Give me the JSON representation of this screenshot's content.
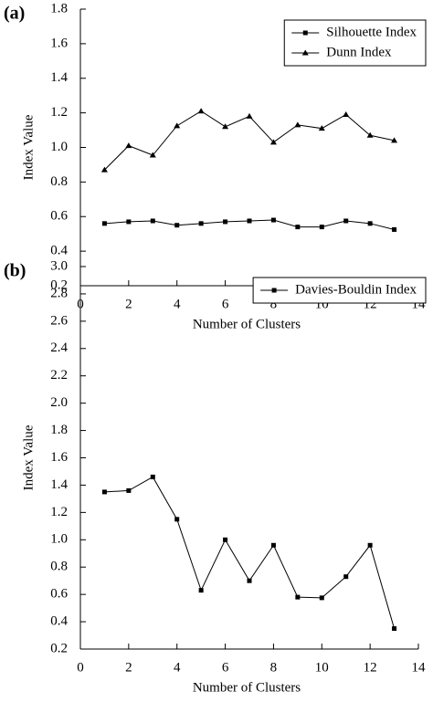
{
  "chart_data": [
    {
      "type": "line",
      "panel_label": "(a)",
      "xlabel": "Number of Clusters",
      "ylabel": "Index Value",
      "x": [
        1,
        2,
        3,
        4,
        5,
        6,
        7,
        8,
        9,
        10,
        11,
        12,
        13
      ],
      "series": [
        {
          "name": "Silhouette Index",
          "color": "#000000",
          "marker": "square",
          "values": [
            0.56,
            0.57,
            0.575,
            0.55,
            0.56,
            0.57,
            0.575,
            0.58,
            0.54,
            0.54,
            0.575,
            0.56,
            0.525
          ]
        },
        {
          "name": "Dunn Index",
          "color": "#000000",
          "marker": "triangle",
          "values": [
            0.87,
            1.01,
            0.955,
            1.125,
            1.21,
            1.12,
            1.18,
            1.03,
            1.13,
            1.11,
            1.19,
            1.07,
            1.04
          ]
        }
      ],
      "xlim": [
        0,
        14
      ],
      "xticks": [
        0,
        2,
        4,
        6,
        8,
        10,
        12,
        14
      ],
      "ylim": [
        0.2,
        1.8
      ],
      "yticks": [
        0.2,
        0.4,
        0.6,
        0.8,
        {
          "value": 1,
          "label": "1.0"
        },
        1.2,
        1.4,
        1.6,
        1.8
      ],
      "legend": "upper right"
    },
    {
      "type": "line",
      "panel_label": "(b)",
      "xlabel": "Number of Clusters",
      "ylabel": "Index Value",
      "x": [
        1,
        2,
        3,
        4,
        5,
        6,
        7,
        8,
        9,
        10,
        11,
        12,
        13
      ],
      "series": [
        {
          "name": "Davies-Bouldin Index",
          "color": "#000000",
          "marker": "square",
          "values": [
            1.35,
            1.36,
            1.46,
            1.15,
            0.63,
            1.0,
            0.7,
            0.96,
            0.58,
            0.575,
            0.73,
            0.96,
            0.35
          ]
        }
      ],
      "xlim": [
        0,
        14
      ],
      "xticks": [
        0,
        2,
        4,
        6,
        8,
        10,
        12,
        14
      ],
      "ylim": [
        0.2,
        3.0
      ],
      "yticks": [
        0.2,
        0.4,
        0.6,
        0.8,
        {
          "value": 1,
          "label": "1.0"
        },
        1.2,
        1.4,
        1.6,
        1.8,
        {
          "value": 2,
          "label": "2.0"
        },
        2.2,
        2.4,
        2.6,
        2.8,
        {
          "value": 3,
          "label": "3.0"
        }
      ],
      "legend": "upper right"
    }
  ]
}
